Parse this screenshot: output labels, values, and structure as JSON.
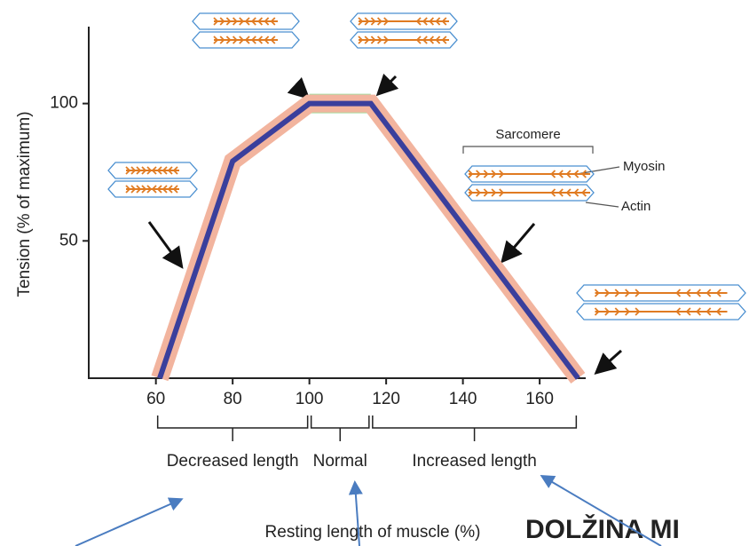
{
  "chart_data": {
    "type": "line",
    "x": [
      61,
      80,
      100,
      116,
      170
    ],
    "values": [
      0,
      79,
      100,
      100,
      0
    ],
    "color": "#3a3f9c",
    "halo_color": "#f2b49e",
    "plateau_color": "#a8dca0",
    "xlim": [
      42.5,
      172
    ],
    "ylim": [
      0,
      128
    ],
    "xticks": [
      60,
      80,
      100,
      120,
      140,
      160
    ],
    "yticks": [
      50,
      100
    ],
    "ylabel": "Tension (% of maximum)",
    "xlabel": "Resting length of muscle (%)",
    "regions": [
      {
        "label": "Decreased length",
        "range": [
          60,
          100
        ]
      },
      {
        "label": "Normal",
        "range": [
          100,
          116
        ]
      },
      {
        "label": "Increased length",
        "range": [
          116,
          170
        ]
      }
    ],
    "annotations": {
      "sarcomere": "Sarcomere",
      "myosin": "Myosin",
      "actin": "Actin",
      "side_label": "DOLŽINA MI"
    }
  }
}
